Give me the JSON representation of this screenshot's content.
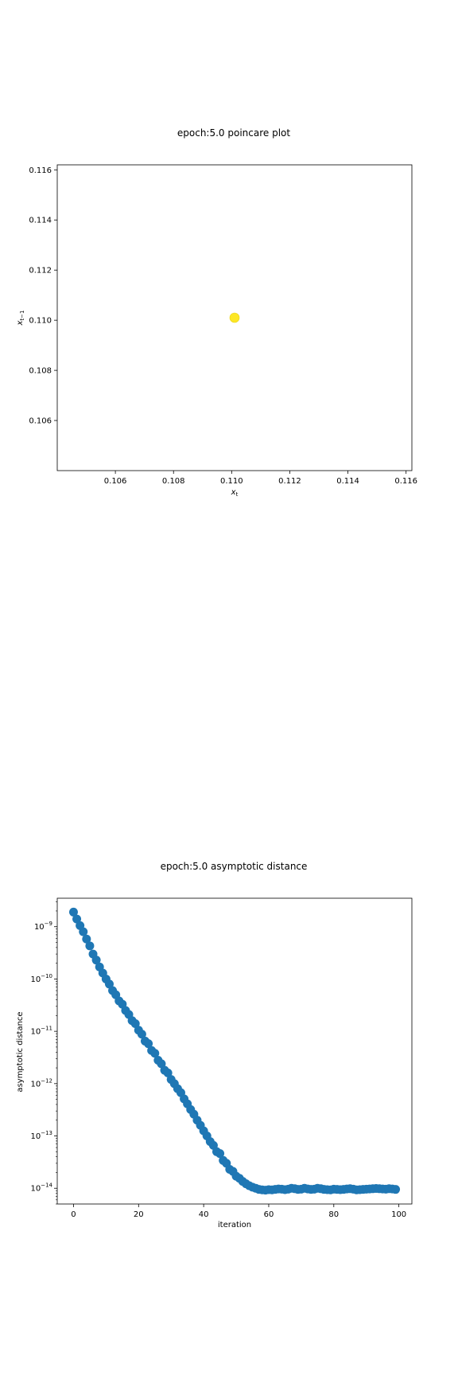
{
  "chart_data": [
    {
      "type": "scatter",
      "title": "epoch:5.0 poincare plot",
      "xlabel": "x_t",
      "ylabel": "x_{t−1}",
      "xlim": [
        0.104,
        0.1162
      ],
      "ylim": [
        0.104,
        0.1162
      ],
      "xticks": [
        "0.106",
        "0.108",
        "0.110",
        "0.112",
        "0.114",
        "0.116"
      ],
      "yticks": [
        "0.106",
        "0.108",
        "0.110",
        "0.112",
        "0.114",
        "0.116"
      ],
      "marker_color": "#fde725",
      "points": [
        {
          "x": 0.1101,
          "y": 0.1101
        }
      ]
    },
    {
      "type": "scatter",
      "title": "epoch:5.0 asymptotic distance",
      "xlabel": "iteration",
      "ylabel": "asymptotic distance",
      "xlim": [
        -5,
        104
      ],
      "ylim": [
        5e-15,
        3.5e-09
      ],
      "yscale": "log",
      "xticks": [
        "0",
        "20",
        "40",
        "60",
        "80",
        "100"
      ],
      "yticks": [
        {
          "base": "10",
          "exp": "−9"
        },
        {
          "base": "10",
          "exp": "−10"
        },
        {
          "base": "10",
          "exp": "−11"
        },
        {
          "base": "10",
          "exp": "−12"
        },
        {
          "base": "10",
          "exp": "−13"
        },
        {
          "base": "10",
          "exp": "−14"
        }
      ],
      "marker_color": "#1f77b4",
      "x": [
        0,
        1,
        2,
        3,
        4,
        5,
        6,
        7,
        8,
        9,
        10,
        11,
        12,
        13,
        14,
        15,
        16,
        17,
        18,
        19,
        20,
        21,
        22,
        23,
        24,
        25,
        26,
        27,
        28,
        29,
        30,
        31,
        32,
        33,
        34,
        35,
        36,
        37,
        38,
        39,
        40,
        41,
        42,
        43,
        44,
        45,
        46,
        47,
        48,
        49,
        50,
        51,
        52,
        53,
        54,
        55,
        56,
        57,
        58,
        59,
        60,
        61,
        62,
        63,
        64,
        65,
        66,
        67,
        68,
        69,
        70,
        71,
        72,
        73,
        74,
        75,
        76,
        77,
        78,
        79,
        80,
        81,
        82,
        83,
        84,
        85,
        86,
        87,
        88,
        89,
        90,
        91,
        92,
        93,
        94,
        95,
        96,
        97,
        98,
        99
      ],
      "y": [
        1.9e-09,
        1.4e-09,
        1.05e-09,
        8e-10,
        5.8e-10,
        4.3e-10,
        3e-10,
        2.3e-10,
        1.7e-10,
        1.3e-10,
        1e-10,
        8e-11,
        6e-11,
        5e-11,
        3.8e-11,
        3.3e-11,
        2.5e-11,
        2.1e-11,
        1.6e-11,
        1.4e-11,
        1.05e-11,
        8.8e-12,
        6.5e-12,
        5.8e-12,
        4.3e-12,
        3.8e-12,
        2.8e-12,
        2.4e-12,
        1.8e-12,
        1.6e-12,
        1.2e-12,
        1e-12,
        8e-13,
        6.7e-13,
        5.1e-13,
        4.1e-13,
        3.2e-13,
        2.6e-13,
        2e-13,
        1.6e-13,
        1.25e-13,
        1e-13,
        7.8e-14,
        6.6e-14,
        5e-14,
        4.6e-14,
        3.4e-14,
        3e-14,
        2.3e-14,
        2.1e-14,
        1.7e-14,
        1.55e-14,
        1.35e-14,
        1.22e-14,
        1.12e-14,
        1.05e-14,
        1e-14,
        9.5e-15,
        9.3e-15,
        9.2e-15,
        9.4e-15,
        9.3e-15,
        9.5e-15,
        9.7e-15,
        9.6e-15,
        9.4e-15,
        9.6e-15,
        1e-14,
        9.8e-15,
        9.5e-15,
        9.6e-15,
        1e-14,
        9.7e-15,
        9.5e-15,
        9.6e-15,
        1e-14,
        9.8e-15,
        9.5e-15,
        9.4e-15,
        9.3e-15,
        9.6e-15,
        9.5e-15,
        9.4e-15,
        9.5e-15,
        9.7e-15,
        9.8e-15,
        9.6e-15,
        9.3e-15,
        9.4e-15,
        9.5e-15,
        9.6e-15,
        9.7e-15,
        9.8e-15,
        9.9e-15,
        9.8e-15,
        9.7e-15,
        9.6e-15,
        9.8e-15,
        9.7e-15,
        9.5e-15
      ]
    }
  ]
}
